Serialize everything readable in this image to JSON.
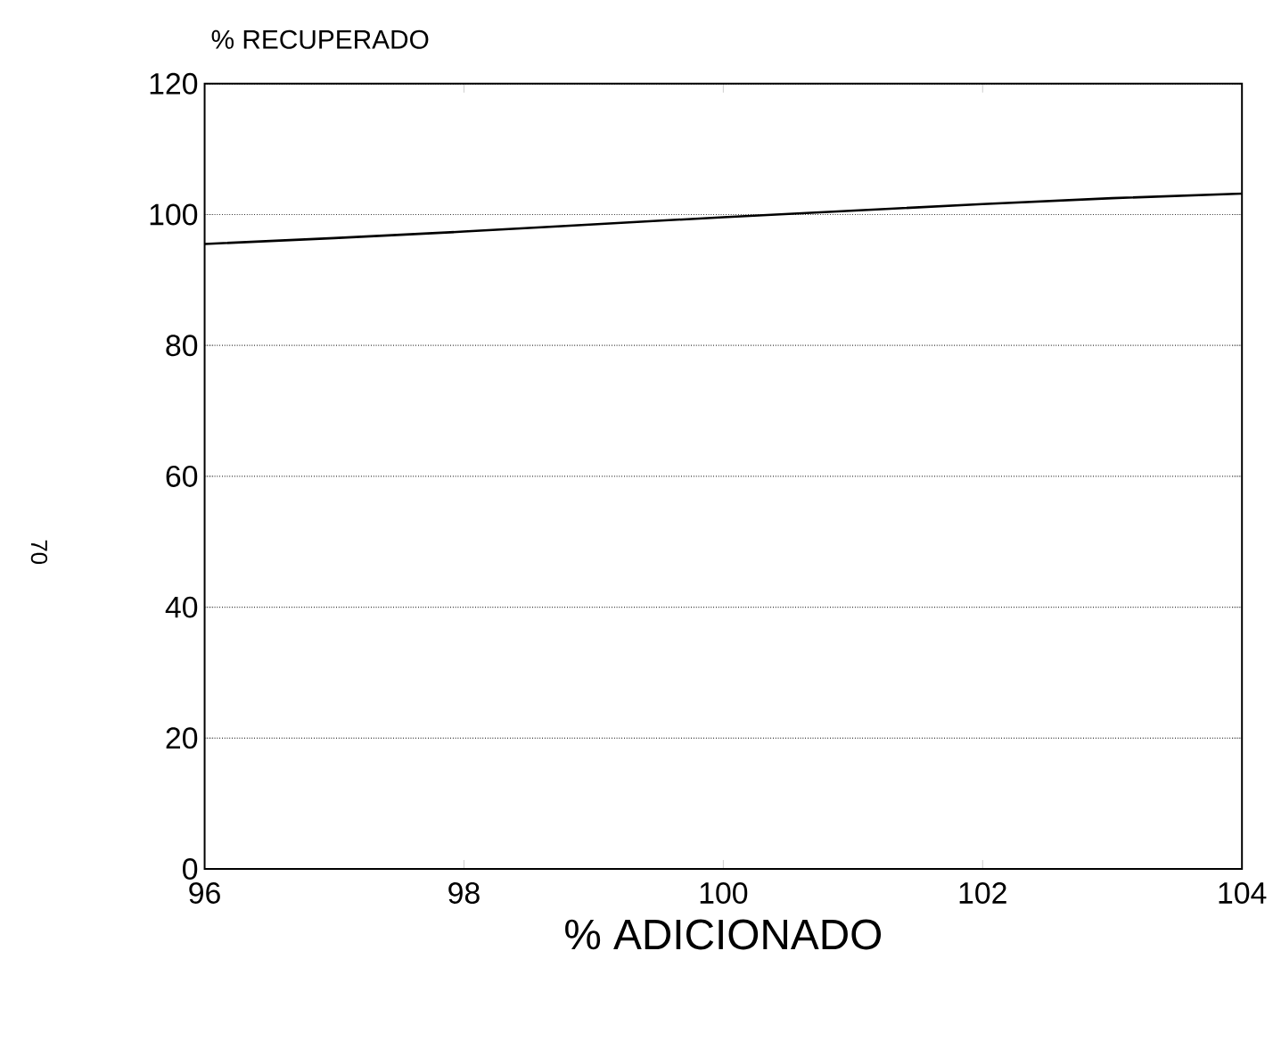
{
  "chart_data": {
    "type": "line",
    "xlabel": "% ADICIONADO",
    "ylabel": "% RECUPERADO",
    "x": [
      96,
      97,
      98,
      99,
      100,
      101,
      102,
      103,
      104
    ],
    "series": [
      {
        "color": "#000000",
        "values": [
          95.5,
          96.4,
          97.4,
          98.5,
          99.6,
          100.6,
          101.6,
          102.5,
          103.2
        ]
      }
    ],
    "xlim": [
      96,
      104
    ],
    "ylim": [
      0,
      120
    ],
    "xticks": [
      96,
      98,
      100,
      102,
      104
    ],
    "yticks": [
      0,
      20,
      40,
      60,
      80,
      100,
      120
    ],
    "grid": "y",
    "marker": "none",
    "line_style": "solid",
    "annotations": [
      "70"
    ]
  }
}
